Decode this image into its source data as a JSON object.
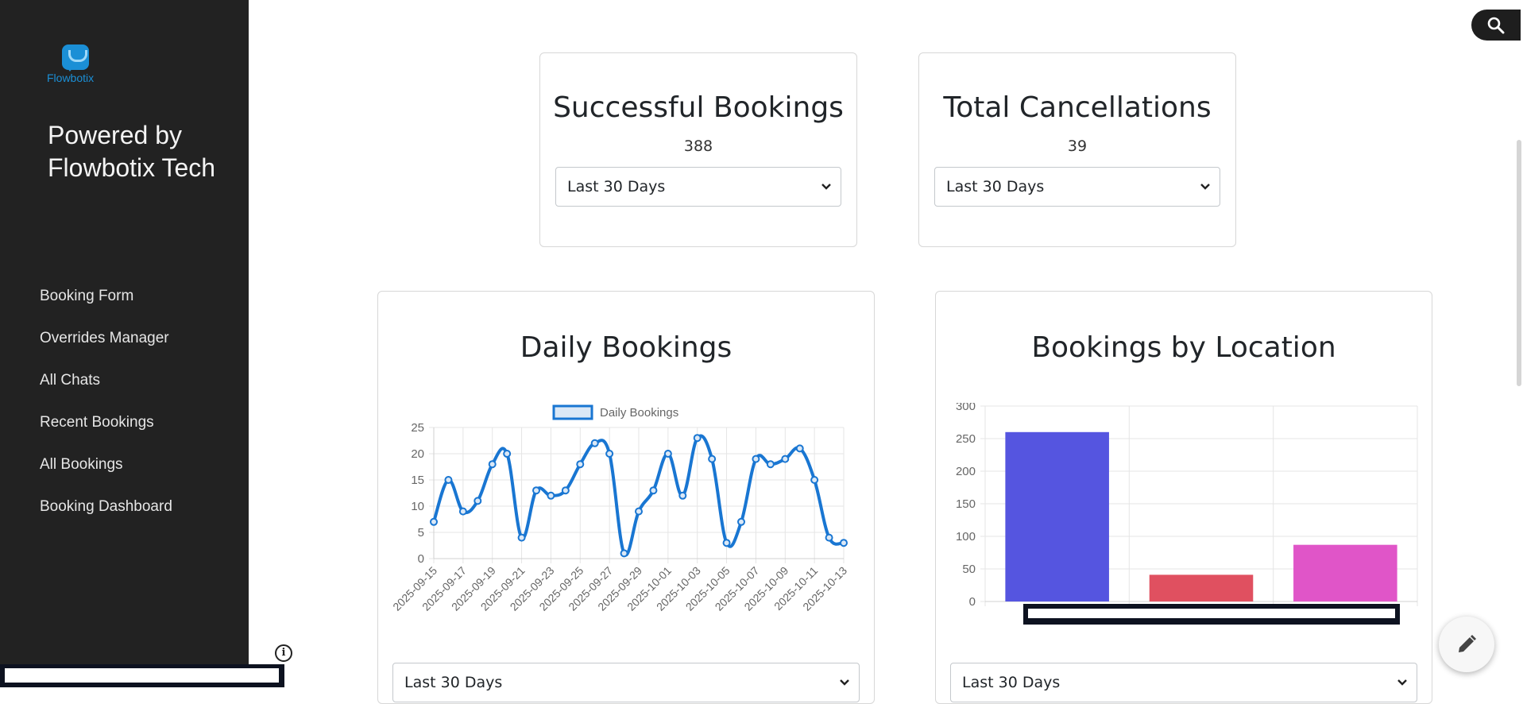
{
  "sidebar": {
    "logo_text": "Flowbotix",
    "powered_by": "Powered by Flowbotix Tech",
    "items": [
      {
        "label": "Booking Form"
      },
      {
        "label": "Overrides Manager"
      },
      {
        "label": "All Chats"
      },
      {
        "label": "Recent Bookings"
      },
      {
        "label": "All Bookings"
      },
      {
        "label": "Booking Dashboard"
      }
    ]
  },
  "stats": {
    "successful": {
      "title": "Successful Bookings",
      "value": "388",
      "period": "Last 30 Days"
    },
    "cancellations": {
      "title": "Total Cancellations",
      "value": "39",
      "period": "Last 30 Days"
    }
  },
  "daily_card": {
    "title": "Daily Bookings",
    "period": "Last 30 Days"
  },
  "location_card": {
    "title": "Bookings by Location",
    "period": "Last 30 Days"
  },
  "icons": {
    "search": "search-icon",
    "edit": "pencil-icon",
    "info": "info-icon"
  },
  "colors": {
    "sidebar": "#222222",
    "line": "#1976d2",
    "bar1": "#5555e0",
    "bar2": "#e05060",
    "bar3": "#e055c8"
  },
  "chart_data": [
    {
      "type": "line",
      "title": "",
      "legend": [
        "Daily Bookings"
      ],
      "legend_position": "top",
      "x": [
        "2025-09-15",
        "2025-09-16",
        "2025-09-17",
        "2025-09-18",
        "2025-09-19",
        "2025-09-20",
        "2025-09-21",
        "2025-09-22",
        "2025-09-23",
        "2025-09-24",
        "2025-09-25",
        "2025-09-26",
        "2025-09-27",
        "2025-09-28",
        "2025-09-29",
        "2025-09-30",
        "2025-10-01",
        "2025-10-02",
        "2025-10-03",
        "2025-10-04",
        "2025-10-05",
        "2025-10-06",
        "2025-10-07",
        "2025-10-08",
        "2025-10-09",
        "2025-10-10",
        "2025-10-11",
        "2025-10-12",
        "2025-10-13"
      ],
      "x_tick_labels": [
        "2025-09-15",
        "2025-09-17",
        "2025-09-19",
        "2025-09-21",
        "2025-09-23",
        "2025-09-25",
        "2025-09-27",
        "2025-09-29",
        "2025-10-01",
        "2025-10-03",
        "2025-10-05",
        "2025-10-07",
        "2025-10-09",
        "2025-10-11",
        "2025-10-13"
      ],
      "series": [
        {
          "name": "Daily Bookings",
          "values": [
            7,
            15,
            9,
            11,
            18,
            20,
            4,
            13,
            12,
            13,
            18,
            22,
            20,
            1,
            9,
            13,
            20,
            12,
            23,
            19,
            3,
            7,
            19,
            18,
            19,
            21,
            15,
            4,
            3
          ]
        }
      ],
      "ylim": [
        0,
        25
      ],
      "y_ticks": [
        0,
        5,
        10,
        15,
        20,
        25
      ],
      "grid": true
    },
    {
      "type": "bar",
      "title": "",
      "categories": [
        "",
        "",
        ""
      ],
      "values": [
        260,
        41,
        87
      ],
      "ylim": [
        0,
        300
      ],
      "y_ticks": [
        0,
        50,
        100,
        150,
        200,
        250,
        300
      ],
      "grid": true
    }
  ]
}
